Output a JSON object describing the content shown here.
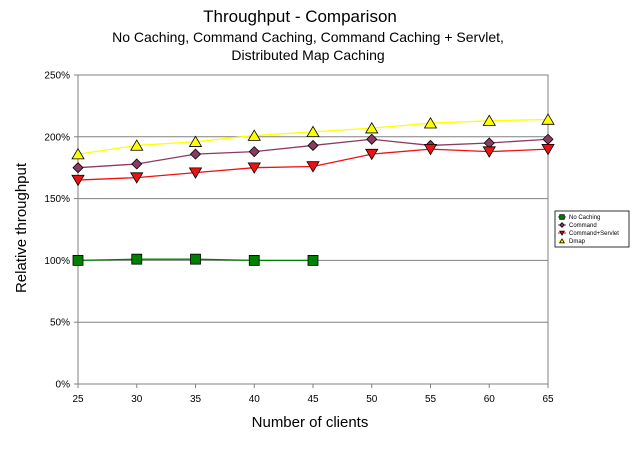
{
  "chart_data": {
    "type": "line",
    "title": "Throughput - Comparison",
    "subtitle_lines": [
      "No Caching, Command Caching, Command Caching + Servlet,",
      "Distributed Map Caching"
    ],
    "xlabel": "Number of clients",
    "ylabel": "Relative throughput",
    "x": [
      25,
      30,
      35,
      40,
      45,
      50,
      55,
      60,
      65
    ],
    "ylim": [
      0,
      250
    ],
    "yticks": [
      0,
      50,
      100,
      150,
      200,
      250
    ],
    "ytick_labels": [
      "0%",
      "50%",
      "100%",
      "150%",
      "200%",
      "250%"
    ],
    "grid": "horizontal",
    "legend_position": "right",
    "series": [
      {
        "name": "No Caching",
        "color": "#008000",
        "marker": "square",
        "x": [
          25,
          30,
          35,
          40,
          45
        ],
        "values": [
          100,
          101,
          101,
          100,
          100
        ]
      },
      {
        "name": "Command",
        "color": "#8b3a62",
        "marker": "diamond",
        "x": [
          25,
          30,
          35,
          40,
          45,
          50,
          55,
          60,
          65
        ],
        "values": [
          175,
          178,
          186,
          188,
          193,
          198,
          193,
          195,
          198
        ]
      },
      {
        "name": "Command+Servlet",
        "color": "#ee1111",
        "marker": "triangle-down",
        "x": [
          25,
          30,
          35,
          40,
          45,
          50,
          55,
          60,
          65
        ],
        "values": [
          165,
          167,
          171,
          175,
          176,
          186,
          190,
          188,
          190
        ]
      },
      {
        "name": "Dmap",
        "color": "#ffff00",
        "marker": "triangle-up",
        "x": [
          25,
          30,
          35,
          40,
          45,
          50,
          55,
          60,
          65
        ],
        "values": [
          186,
          193,
          196,
          201,
          204,
          207,
          211,
          213,
          214
        ]
      }
    ]
  }
}
